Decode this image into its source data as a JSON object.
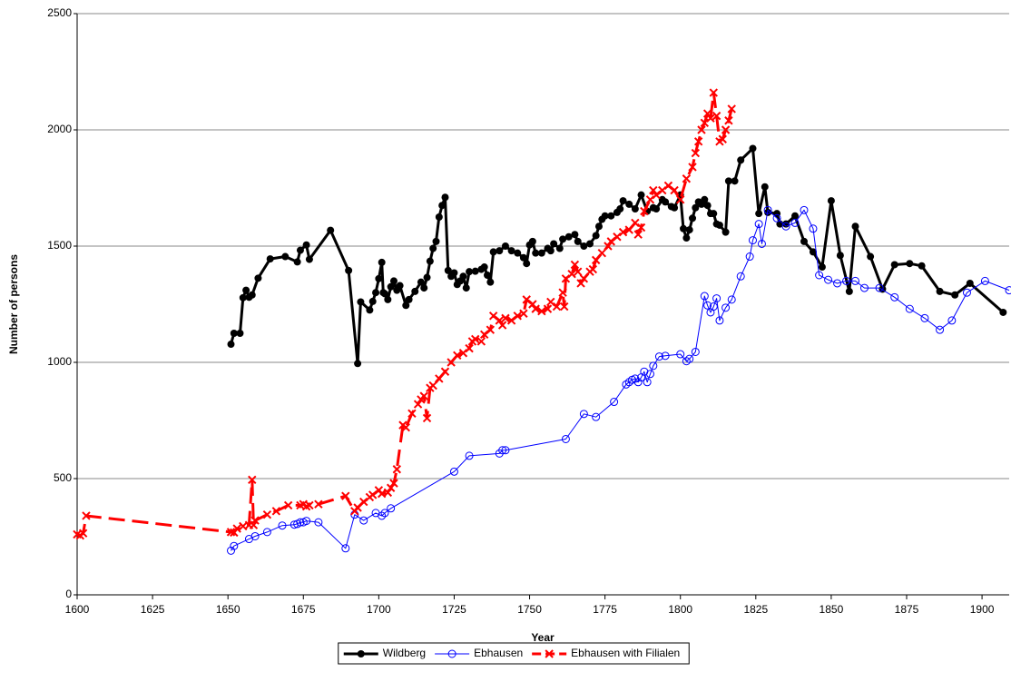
{
  "chart_data": {
    "type": "line",
    "x_label": "Year",
    "y_label": "Number of persons",
    "xlim": [
      1600,
      1909
    ],
    "ylim": [
      0,
      2500
    ],
    "xticks": [
      1600,
      1625,
      1650,
      1675,
      1700,
      1725,
      1750,
      1775,
      1800,
      1825,
      1850,
      1875,
      1900
    ],
    "yticks": [
      0,
      500,
      1000,
      1500,
      2000,
      2500
    ],
    "grid": true,
    "legend": "bottom",
    "series": [
      {
        "name": "Wildberg",
        "color": "#000000",
        "line_width": 3,
        "marker": "filled-circle",
        "dashed": false,
        "x": [
          1651,
          1652,
          1654,
          1655,
          1656,
          1657,
          1658,
          1660,
          1664,
          1669,
          1673,
          1674,
          1676,
          1677,
          1684,
          1690,
          1693,
          1694,
          1697,
          1698,
          1699,
          1700,
          1701,
          1701.5,
          1702,
          1703,
          1704,
          1705,
          1706,
          1707,
          1709,
          1710,
          1712,
          1714,
          1715,
          1716,
          1717,
          1718,
          1719,
          1720,
          1721,
          1722,
          1723,
          1724,
          1725,
          1726,
          1727,
          1728,
          1729,
          1730,
          1732,
          1734,
          1735,
          1736,
          1737,
          1738,
          1740,
          1742,
          1744,
          1746,
          1748,
          1749,
          1750,
          1751,
          1752,
          1754,
          1756,
          1757,
          1758,
          1760,
          1761,
          1763,
          1765,
          1766,
          1768,
          1770,
          1772,
          1773,
          1774,
          1775,
          1777,
          1779,
          1780,
          1781,
          1783,
          1785,
          1787,
          1789,
          1791,
          1792,
          1794,
          1795,
          1797,
          1798,
          1800,
          1801,
          1802,
          1803,
          1804,
          1805,
          1806,
          1807,
          1808,
          1809,
          1810,
          1811,
          1812,
          1813,
          1815,
          1816,
          1818,
          1820,
          1824,
          1826,
          1828,
          1829,
          1832,
          1833,
          1835,
          1838,
          1841,
          1844,
          1847,
          1850,
          1853,
          1856,
          1858,
          1863,
          1867,
          1871,
          1876,
          1880,
          1886,
          1891,
          1896,
          1907
        ],
        "values": [
          1078,
          1125,
          1125,
          1278,
          1310,
          1280,
          1290,
          1362,
          1445,
          1455,
          1432,
          1482,
          1505,
          1443,
          1568,
          1395,
          995,
          1260,
          1225,
          1262,
          1300,
          1360,
          1430,
          1300,
          1295,
          1270,
          1325,
          1350,
          1310,
          1330,
          1245,
          1270,
          1305,
          1345,
          1320,
          1365,
          1435,
          1490,
          1520,
          1625,
          1675,
          1710,
          1395,
          1370,
          1385,
          1335,
          1350,
          1370,
          1320,
          1390,
          1392,
          1400,
          1410,
          1375,
          1345,
          1475,
          1480,
          1500,
          1480,
          1470,
          1450,
          1425,
          1505,
          1520,
          1470,
          1470,
          1490,
          1480,
          1510,
          1490,
          1530,
          1540,
          1550,
          1520,
          1500,
          1510,
          1545,
          1585,
          1615,
          1630,
          1630,
          1645,
          1660,
          1695,
          1680,
          1660,
          1720,
          1650,
          1665,
          1660,
          1700,
          1690,
          1670,
          1665,
          1720,
          1575,
          1535,
          1570,
          1620,
          1665,
          1690,
          1680,
          1700,
          1675,
          1640,
          1640,
          1595,
          1590,
          1560,
          1780,
          1780,
          1870,
          1920,
          1640,
          1755,
          1645,
          1640,
          1595,
          1595,
          1630,
          1520,
          1475,
          1410,
          1695,
          1460,
          1305,
          1585,
          1455,
          1315,
          1420,
          1425,
          1415,
          1305,
          1290,
          1340,
          1215
        ]
      },
      {
        "name": "Ebhausen",
        "color": "#0000ff",
        "line_width": 1,
        "marker": "open-circle",
        "dashed": false,
        "x": [
          1651,
          1652,
          1657,
          1659,
          1663,
          1668,
          1672,
          1673,
          1674,
          1675,
          1676,
          1680,
          1689,
          1692,
          1695,
          1699,
          1701,
          1702,
          1704,
          1725,
          1730,
          1740,
          1741,
          1742,
          1762,
          1768,
          1772,
          1778,
          1782,
          1783,
          1784,
          1785,
          1786,
          1787,
          1788,
          1789,
          1790,
          1791,
          1793,
          1795,
          1800,
          1802,
          1803,
          1805,
          1808,
          1809,
          1810,
          1811,
          1812,
          1813,
          1815,
          1817,
          1820,
          1823,
          1824,
          1826,
          1827,
          1829,
          1832,
          1835,
          1838,
          1841,
          1844,
          1846,
          1849,
          1852,
          1855,
          1858,
          1861,
          1866,
          1871,
          1876,
          1881,
          1886,
          1890,
          1895,
          1901,
          1909
        ],
        "values": [
          190,
          210,
          240,
          252,
          270,
          298,
          302,
          305,
          312,
          312,
          318,
          312,
          200,
          345,
          320,
          352,
          340,
          352,
          372,
          530,
          598,
          608,
          622,
          622,
          670,
          778,
          765,
          830,
          905,
          915,
          925,
          930,
          915,
          935,
          960,
          915,
          950,
          985,
          1025,
          1028,
          1035,
          1005,
          1015,
          1045,
          1285,
          1245,
          1215,
          1240,
          1275,
          1180,
          1235,
          1270,
          1370,
          1455,
          1525,
          1595,
          1510,
          1655,
          1620,
          1585,
          1600,
          1655,
          1575,
          1375,
          1355,
          1340,
          1350,
          1350,
          1320,
          1320,
          1280,
          1230,
          1190,
          1140,
          1180,
          1300,
          1350,
          1310
        ]
      },
      {
        "name": "Ebhausen with Filialen",
        "color": "#ff0000",
        "line_width": 3,
        "marker": "cross",
        "dashed": true,
        "x": [
          1600,
          1601,
          1602,
          1603,
          1651,
          1652,
          1653,
          1655,
          1657,
          1658,
          1658.5,
          1659,
          1663,
          1666,
          1670,
          1674,
          1675,
          1676,
          1677,
          1680,
          1689,
          1692,
          1693,
          1695,
          1697,
          1698,
          1700,
          1701,
          1703,
          1704,
          1705,
          1706,
          1708,
          1709,
          1711,
          1713,
          1714,
          1715,
          1716,
          1717,
          1718,
          1720,
          1722,
          1724,
          1726,
          1728,
          1730,
          1731,
          1732,
          1734,
          1735,
          1737,
          1738,
          1740,
          1741,
          1742,
          1744,
          1746,
          1748,
          1749,
          1751,
          1752,
          1754,
          1756,
          1757,
          1759,
          1761,
          1761.5,
          1762,
          1764,
          1765,
          1766,
          1767,
          1768,
          1770,
          1771,
          1772,
          1774,
          1776,
          1777,
          1779,
          1781,
          1783,
          1785,
          1786,
          1787,
          1788,
          1790,
          1791,
          1792,
          1794,
          1796,
          1798,
          1800,
          1802,
          1804,
          1805,
          1806,
          1807,
          1808,
          1809,
          1810,
          1811,
          1812,
          1813,
          1814,
          1815,
          1816,
          1817
        ],
        "values": [
          260,
          255,
          265,
          340,
          270,
          268,
          285,
          295,
          300,
          495,
          300,
          320,
          345,
          360,
          385,
          385,
          390,
          380,
          385,
          390,
          425,
          360,
          375,
          400,
          420,
          430,
          450,
          435,
          440,
          460,
          480,
          540,
          730,
          720,
          780,
          820,
          840,
          855,
          760,
          890,
          900,
          930,
          960,
          1000,
          1030,
          1040,
          1060,
          1090,
          1100,
          1090,
          1120,
          1140,
          1200,
          1180,
          1160,
          1190,
          1180,
          1200,
          1210,
          1270,
          1250,
          1230,
          1220,
          1230,
          1260,
          1240,
          1300,
          1240,
          1360,
          1380,
          1420,
          1390,
          1340,
          1360,
          1390,
          1400,
          1440,
          1470,
          1500,
          1520,
          1540,
          1560,
          1570,
          1600,
          1550,
          1580,
          1650,
          1700,
          1740,
          1720,
          1740,
          1760,
          1740,
          1700,
          1790,
          1840,
          1900,
          1950,
          2000,
          2030,
          2070,
          2050,
          2160,
          2060,
          1950,
          1960,
          2000,
          2040,
          2090
        ]
      }
    ]
  }
}
